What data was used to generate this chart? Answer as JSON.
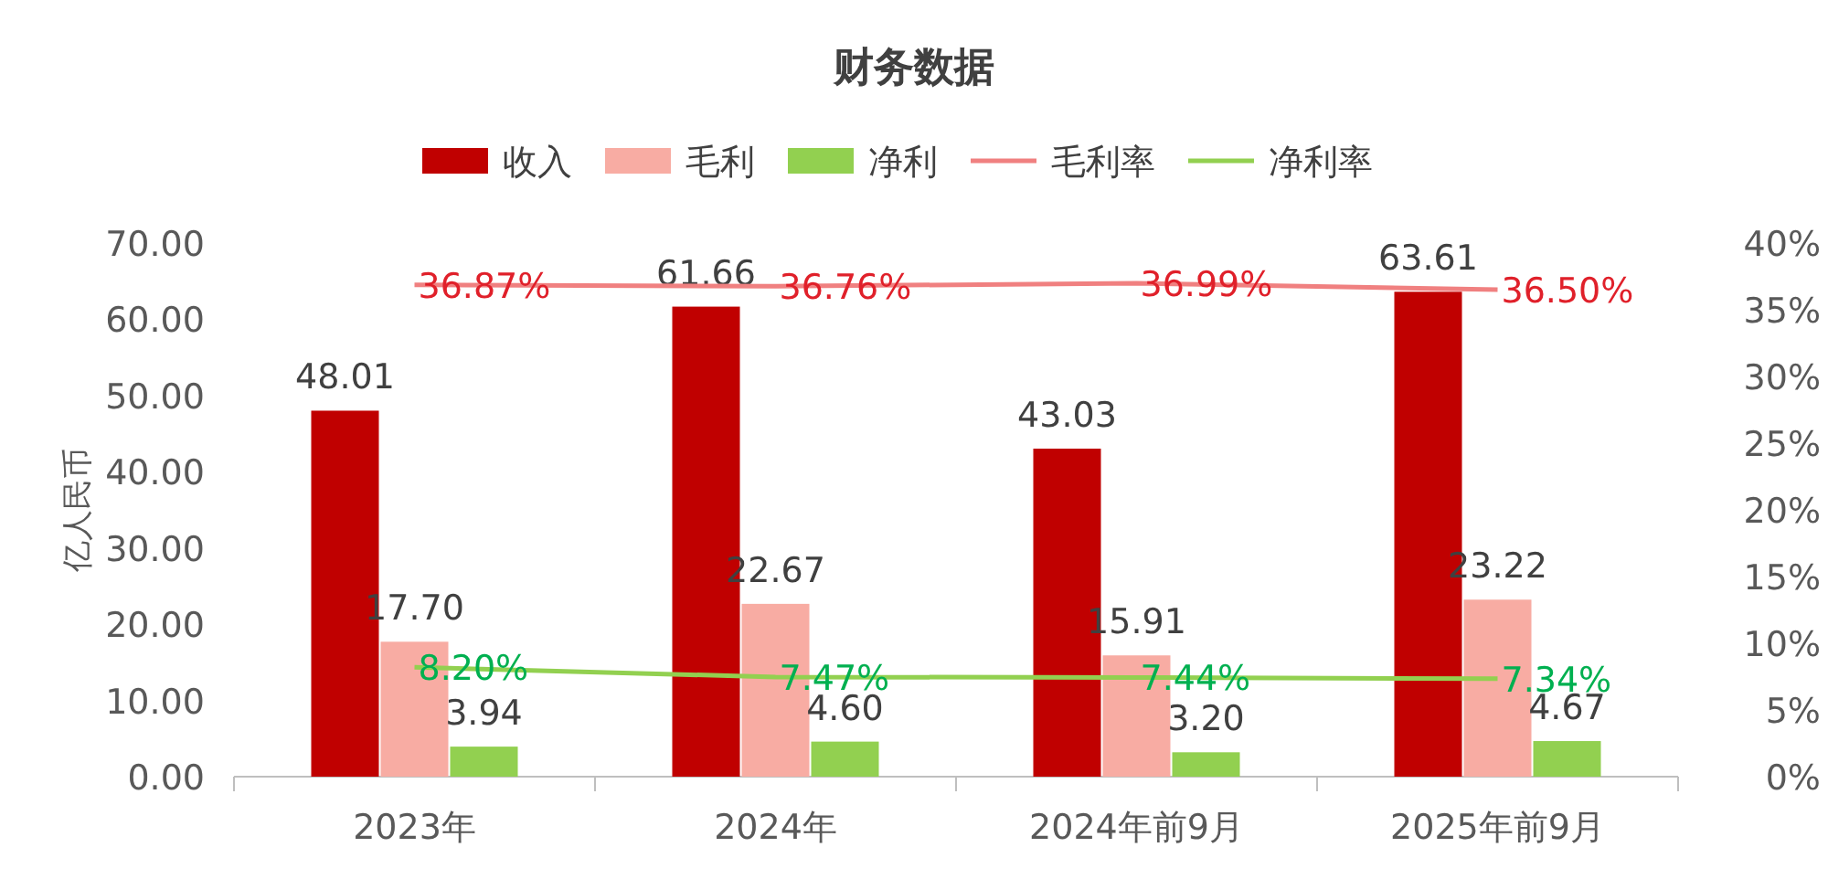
{
  "chart_data": {
    "type": "bar",
    "title": "财务数据",
    "ylabel": "亿人民币",
    "categories": [
      "2023年",
      "2024年",
      "2024年前9月",
      "2025年前9月"
    ],
    "series": [
      {
        "name": "收入",
        "color": "#c00000",
        "values": [
          48.01,
          61.66,
          43.03,
          63.61
        ],
        "value_labels": [
          "48.01",
          "61.66",
          "43.03",
          "63.61"
        ]
      },
      {
        "name": "毛利",
        "color": "#f8aca3",
        "values": [
          17.7,
          22.67,
          15.91,
          23.22
        ],
        "value_labels": [
          "17.70",
          "22.67",
          "15.91",
          "23.22"
        ]
      },
      {
        "name": "净利",
        "color": "#92d050",
        "values": [
          3.94,
          4.6,
          3.2,
          4.67
        ],
        "value_labels": [
          "3.94",
          "4.60",
          "3.20",
          "4.67"
        ]
      },
      {
        "name": "毛利率",
        "type": "line",
        "axis": "y2",
        "color": "#f08080",
        "values": [
          36.87,
          36.76,
          36.99,
          36.5
        ],
        "value_labels": [
          "36.87%",
          "36.76%",
          "36.99%",
          "36.50%"
        ]
      },
      {
        "name": "净利率",
        "type": "line",
        "axis": "y2",
        "color": "#92d050",
        "values": [
          8.2,
          7.47,
          7.44,
          7.34
        ],
        "value_labels": [
          "8.20%",
          "7.47%",
          "7.44%",
          "7.34%"
        ]
      }
    ],
    "ylim": [
      0,
      70
    ],
    "yticks": [
      {
        "value": 0,
        "label": "0.00"
      },
      {
        "value": 10,
        "label": "10.00"
      },
      {
        "value": 20,
        "label": "20.00"
      },
      {
        "value": 30,
        "label": "30.00"
      },
      {
        "value": 40,
        "label": "40.00"
      },
      {
        "value": 50,
        "label": "50.00"
      },
      {
        "value": 60,
        "label": "60.00"
      },
      {
        "value": 70,
        "label": "70.00"
      }
    ],
    "y2lim": [
      0,
      40
    ],
    "y2ticks": [
      {
        "value": 0,
        "label": "0%"
      },
      {
        "value": 5,
        "label": "5%"
      },
      {
        "value": 10,
        "label": "10%"
      },
      {
        "value": 15,
        "label": "15%"
      },
      {
        "value": 20,
        "label": "20%"
      },
      {
        "value": 25,
        "label": "25%"
      },
      {
        "value": 30,
        "label": "30%"
      },
      {
        "value": 35,
        "label": "35%"
      },
      {
        "value": 40,
        "label": "40%"
      }
    ],
    "legend": "top",
    "grid": false,
    "marker": "none"
  }
}
